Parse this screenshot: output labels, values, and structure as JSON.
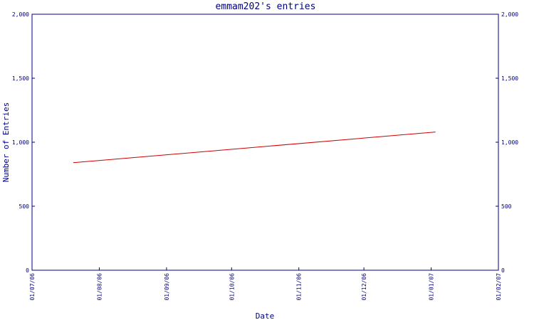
{
  "chart_data": {
    "type": "line",
    "title": "emmam202's entries",
    "xlabel": "Date",
    "ylabel": "Number of Entries",
    "x_ticks": [
      "01/07/06",
      "01/08/06",
      "01/09/06",
      "01/10/06",
      "01/11/06",
      "01/12/06",
      "01/01/07",
      "01/02/07"
    ],
    "y_ticks": [
      "0",
      "500",
      "1,000",
      "1,500",
      "2,000"
    ],
    "ylim": [
      0,
      2000
    ],
    "xlim": [
      "2006-07-01",
      "2007-02-01"
    ],
    "grid": false,
    "right_axis": true,
    "series": [
      {
        "color": "#cc0000",
        "x": [
          "2006-07-20",
          "2007-01-03"
        ],
        "values": [
          840,
          1080
        ]
      }
    ]
  },
  "colors": {
    "axis": "#000080",
    "text": "#000080",
    "series": "#cc0000",
    "background": "#ffffff"
  }
}
